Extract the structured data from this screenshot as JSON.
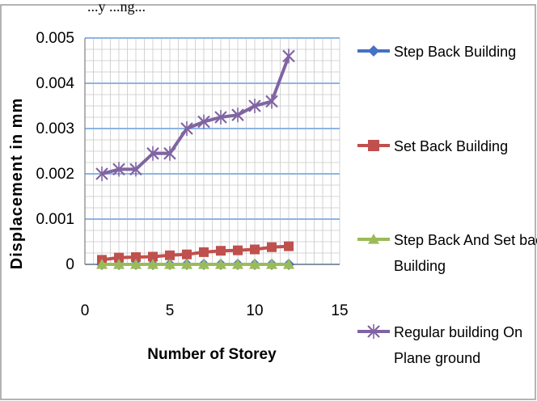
{
  "caption_fragment": "...y   ...ng...",
  "chart_data": {
    "type": "line",
    "title": "",
    "xlabel": "Number of Storey",
    "ylabel": "Displacement in mm",
    "xlim": [
      0,
      15
    ],
    "ylim": [
      0,
      0.005
    ],
    "x_ticks": [
      "0",
      "5",
      "10",
      "15"
    ],
    "y_ticks": [
      "0",
      "0.001",
      "0.002",
      "0.003",
      "0.004",
      "0.005"
    ],
    "grid": true,
    "legend_position": "right",
    "x": [
      1,
      2,
      3,
      4,
      5,
      6,
      7,
      8,
      9,
      10,
      11,
      12
    ],
    "series": [
      {
        "name": "Step Back Building",
        "color": "#4472c4",
        "marker": "diamond",
        "values": [
          0,
          0,
          0,
          0,
          0,
          0,
          0,
          0,
          0,
          0,
          0,
          0
        ]
      },
      {
        "name": "Set Back Building",
        "color": "#c0504d",
        "marker": "square",
        "values": [
          0.0001,
          0.00015,
          0.00016,
          0.00017,
          0.0002,
          0.00022,
          0.00027,
          0.0003,
          0.00031,
          0.00033,
          0.00038,
          0.0004
        ]
      },
      {
        "name": "Step Back And Set back Building",
        "color": "#9bbb59",
        "marker": "triangle",
        "values": [
          0,
          0,
          0,
          0,
          0,
          0,
          0,
          0,
          0,
          0,
          0,
          0
        ]
      },
      {
        "name": "Regular building On Plane ground",
        "color": "#8064a2",
        "marker": "x",
        "values": [
          0.002,
          0.0021,
          0.0021,
          0.00245,
          0.00245,
          0.003,
          0.00315,
          0.00325,
          0.0033,
          0.0035,
          0.0036,
          0.0046
        ]
      }
    ]
  }
}
